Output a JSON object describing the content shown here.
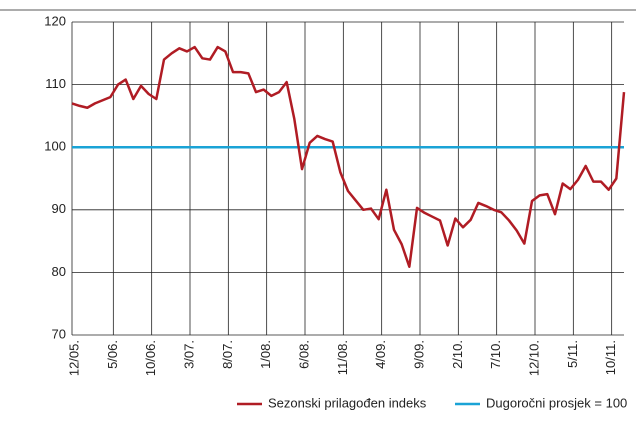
{
  "chart_data": {
    "type": "line",
    "categories": [
      "12/05.",
      null,
      null,
      null,
      null,
      "5/06.",
      null,
      null,
      null,
      null,
      "10/06.",
      null,
      null,
      null,
      null,
      "3/07.",
      null,
      null,
      null,
      null,
      "8/07.",
      null,
      null,
      null,
      null,
      "1/08.",
      null,
      null,
      null,
      null,
      "6/08.",
      null,
      null,
      null,
      null,
      "11/08.",
      null,
      null,
      null,
      null,
      "4/09.",
      null,
      null,
      null,
      null,
      "9/09.",
      null,
      null,
      null,
      null,
      "2/10.",
      null,
      null,
      null,
      null,
      "7/10.",
      null,
      null,
      null,
      null,
      "12/10.",
      null,
      null,
      null,
      null,
      "5/11.",
      null,
      null,
      null,
      null,
      "10/11.",
      null,
      null
    ],
    "series": [
      {
        "name": "Sezonski prilagođen indeks",
        "color": "#b01c24",
        "values": [
          107,
          106.6,
          106.3,
          107,
          107.5,
          108,
          110,
          110.8,
          107.7,
          109.8,
          108.5,
          107.7,
          114,
          115,
          115.8,
          115.3,
          116,
          114.2,
          114,
          116,
          115.3,
          112,
          112,
          111.8,
          108.8,
          109.2,
          108.2,
          108.8,
          110.4,
          104.5,
          96.5,
          100.7,
          101.8,
          101.3,
          100.9,
          96,
          93,
          91.5,
          90,
          90.2,
          88.5,
          93.2,
          86.8,
          84.5,
          80.9,
          90.3,
          89.5,
          88.9,
          88.3,
          84.3,
          88.6,
          87.2,
          88.4,
          91.1,
          90.6,
          90,
          89.6,
          88.3,
          86.7,
          84.6,
          91.4,
          92.3,
          92.5,
          89.3,
          94.2,
          93.3,
          94.8,
          97,
          94.5,
          94.5,
          93.2,
          95,
          108.8
        ]
      }
    ],
    "reference_line": {
      "name": "Dugoročni prosjek = 100",
      "value": 100,
      "color": "#1aa3d6"
    },
    "ylim": [
      70,
      120
    ],
    "yticks": [
      70,
      80,
      90,
      100,
      110,
      120
    ],
    "grid": true,
    "legend": "bottom"
  }
}
